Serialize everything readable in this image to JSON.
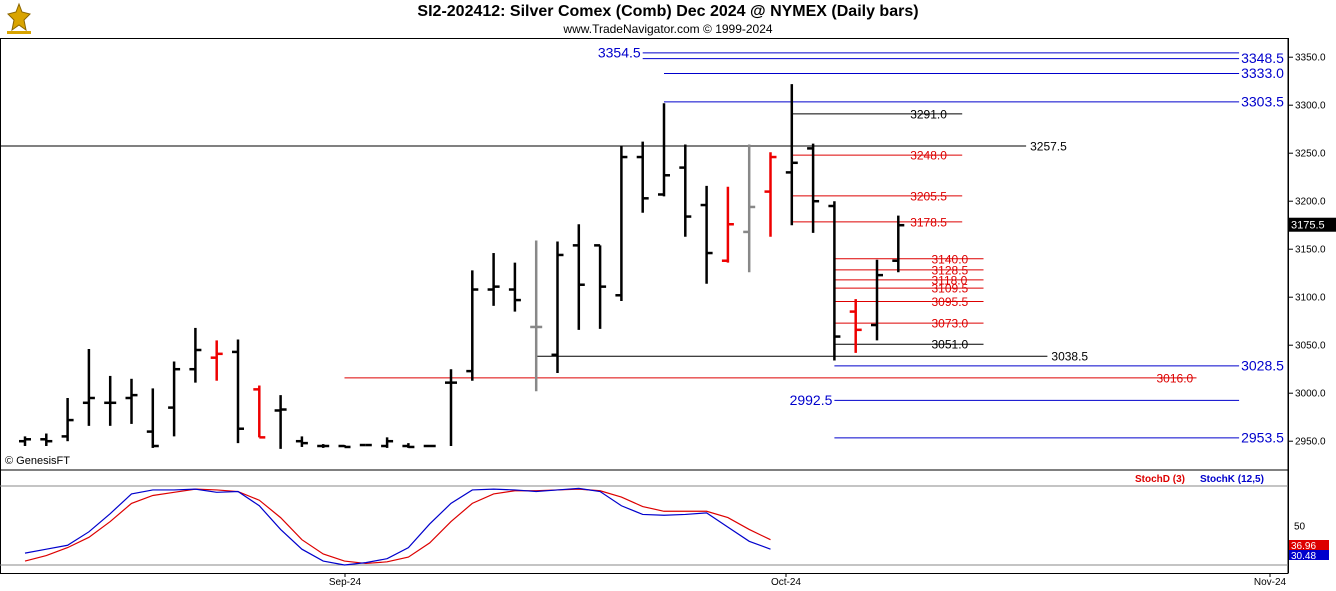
{
  "header": {
    "title": "SI2-202412:  Silver Comex (Comb) Dec 2024 @ NYMEX  (Daily bars)",
    "subtitle": "www.TradeNavigator.com © 1999-2024",
    "watermark": "© GenesisFT"
  },
  "colors": {
    "up": "#000000",
    "down": "#ee0000",
    "neutral": "#888888",
    "blue": "#0000cc",
    "red": "#dd0000",
    "accent_green": "#00cc00",
    "price_tag_bg": "#000000"
  },
  "chart_data": [
    {
      "type": "ohlc",
      "title": "SI2-202412:  Silver Comex (Comb) Dec 2024 @ NYMEX  (Daily bars)",
      "y_ticks": [
        2950.0,
        3000.0,
        3050.0,
        3100.0,
        3150.0,
        3200.0,
        3250.0,
        3300.0,
        3350.0
      ],
      "ylim": [
        2920,
        3370
      ],
      "x_labels": [
        "Sep-24",
        "Oct-24",
        "Nov-24"
      ],
      "last_price": "3175.5",
      "bars": [
        {
          "o": 2950,
          "h": 2955,
          "l": 2945,
          "c": 2952,
          "dir": "up"
        },
        {
          "o": 2952,
          "h": 2958,
          "l": 2945,
          "c": 2950,
          "dir": "up"
        },
        {
          "o": 2955,
          "h": 2995,
          "l": 2950,
          "c": 2972,
          "dir": "up"
        },
        {
          "o": 2990,
          "h": 3046,
          "l": 2966,
          "c": 2995,
          "dir": "up"
        },
        {
          "o": 2990,
          "h": 3018,
          "l": 2966,
          "c": 2990,
          "dir": "up"
        },
        {
          "o": 2995,
          "h": 3015,
          "l": 2968,
          "c": 2998,
          "dir": "up"
        },
        {
          "o": 2960,
          "h": 3005,
          "l": 2943,
          "c": 2945,
          "dir": "up"
        },
        {
          "o": 2985,
          "h": 3033,
          "l": 2955,
          "c": 3025,
          "dir": "up"
        },
        {
          "o": 3025,
          "h": 3068,
          "l": 3011,
          "c": 3045,
          "dir": "up"
        },
        {
          "o": 3037,
          "h": 3055,
          "l": 3013,
          "c": 3041,
          "dir": "down"
        },
        {
          "o": 3043,
          "h": 3056,
          "l": 2948,
          "c": 2963,
          "dir": "up"
        },
        {
          "o": 3004,
          "h": 3008,
          "l": 2954,
          "c": 2954,
          "dir": "down"
        },
        {
          "o": 2982,
          "h": 2998,
          "l": 2942,
          "c": 2983,
          "dir": "up"
        },
        {
          "o": 2950,
          "h": 2955,
          "l": 2944,
          "c": 2948,
          "dir": "up"
        },
        {
          "o": 2945,
          "h": 2947,
          "l": 2943,
          "c": 2945,
          "dir": "up"
        },
        {
          "o": 2945,
          "h": 2946,
          "l": 2944,
          "c": 2944,
          "dir": "up"
        },
        {
          "o": 2946,
          "h": 2946,
          "l": 2946,
          "c": 2946,
          "dir": "up"
        },
        {
          "o": 2945,
          "h": 2954,
          "l": 2943,
          "c": 2950,
          "dir": "up"
        },
        {
          "o": 2945,
          "h": 2948,
          "l": 2943,
          "c": 2944,
          "dir": "up"
        },
        {
          "o": 2945,
          "h": 2946,
          "l": 2944,
          "c": 2945,
          "dir": "up"
        },
        {
          "o": 3011,
          "h": 3025,
          "l": 2945,
          "c": 3011,
          "dir": "up"
        },
        {
          "o": 3023,
          "h": 3128,
          "l": 3013,
          "c": 3108,
          "dir": "up"
        },
        {
          "o": 3108,
          "h": 3146,
          "l": 3091,
          "c": 3111,
          "dir": "up"
        },
        {
          "o": 3108,
          "h": 3136,
          "l": 3085,
          "c": 3097,
          "dir": "up"
        },
        {
          "o": 3069,
          "h": 3159,
          "l": 3002,
          "c": 3069,
          "dir": "neutral"
        },
        {
          "o": 3040,
          "h": 3158,
          "l": 3021,
          "c": 3144,
          "dir": "up"
        },
        {
          "o": 3154,
          "h": 3176,
          "l": 3066,
          "c": 3113,
          "dir": "up"
        },
        {
          "o": 3154,
          "h": 3154,
          "l": 3067,
          "c": 3111,
          "dir": "up"
        },
        {
          "o": 3102,
          "h": 3257,
          "l": 3096,
          "c": 3246,
          "dir": "up"
        },
        {
          "o": 3246,
          "h": 3262,
          "l": 3188,
          "c": 3203,
          "dir": "up"
        },
        {
          "o": 3207,
          "h": 3302,
          "l": 3205,
          "c": 3227,
          "dir": "up"
        },
        {
          "o": 3235,
          "h": 3259,
          "l": 3163,
          "c": 3184,
          "dir": "up"
        },
        {
          "o": 3196,
          "h": 3216,
          "l": 3114,
          "c": 3146,
          "dir": "up"
        },
        {
          "o": 3138,
          "h": 3215,
          "l": 3136,
          "c": 3176,
          "dir": "down"
        },
        {
          "o": 3168,
          "h": 3259,
          "l": 3126,
          "c": 3194,
          "dir": "neutral"
        },
        {
          "o": 3210,
          "h": 3251,
          "l": 3163,
          "c": 3246,
          "dir": "down"
        },
        {
          "o": 3230,
          "h": 3322,
          "l": 3175,
          "c": 3240,
          "dir": "up"
        },
        {
          "o": 3255,
          "h": 3260,
          "l": 3167,
          "c": 3200,
          "dir": "up"
        },
        {
          "o": 3195,
          "h": 3200,
          "l": 3034,
          "c": 3059,
          "dir": "up"
        },
        {
          "o": 3085,
          "h": 3098,
          "l": 3042,
          "c": 3066,
          "dir": "down"
        },
        {
          "o": 3071,
          "h": 3139,
          "l": 3055,
          "c": 3123,
          "dir": "up"
        },
        {
          "o": 3138,
          "h": 3185,
          "l": 3126,
          "c": 3175,
          "dir": "up"
        }
      ],
      "levels": [
        {
          "value": 3354.5,
          "label": "3354.5",
          "color": "blue",
          "from": 29,
          "to": 57,
          "label_pos": "left"
        },
        {
          "value": 3348.5,
          "label": "3348.5",
          "color": "blue",
          "from": 29,
          "to": 57,
          "label_pos": "right"
        },
        {
          "value": 3333.0,
          "label": "3333.0",
          "color": "blue",
          "from": 30,
          "to": 57,
          "label_pos": "right"
        },
        {
          "value": 3303.5,
          "label": "3303.5",
          "color": "blue",
          "from": 30,
          "to": 57,
          "label_pos": "right"
        },
        {
          "value": 3291.0,
          "label": "3291.0",
          "color": "black",
          "from": 36,
          "to": 44,
          "label_pos": "right"
        },
        {
          "value": 3257.5,
          "label": "3257.5",
          "color": "black",
          "from": -1,
          "to": 47,
          "label_pos": "right"
        },
        {
          "value": 3248.0,
          "label": "3248.0",
          "color": "red",
          "from": 36,
          "to": 44,
          "label_pos": "right"
        },
        {
          "value": 3205.5,
          "label": "3205.5",
          "color": "red",
          "from": 36,
          "to": 44,
          "label_pos": "right"
        },
        {
          "value": 3178.5,
          "label": "3178.5",
          "color": "red",
          "from": 36,
          "to": 44,
          "label_pos": "right"
        },
        {
          "value": 3140.0,
          "label": "3140.0",
          "color": "red",
          "from": 38,
          "to": 45,
          "label_pos": "right"
        },
        {
          "value": 3128.5,
          "label": "3128.5",
          "color": "red",
          "from": 38,
          "to": 45,
          "label_pos": "right"
        },
        {
          "value": 3118.0,
          "label": "3118.0",
          "color": "red",
          "from": 38,
          "to": 45,
          "label_pos": "right"
        },
        {
          "value": 3109.5,
          "label": "3109.5",
          "color": "red",
          "from": 38,
          "to": 45,
          "label_pos": "right"
        },
        {
          "value": 3095.5,
          "label": "3095.5",
          "color": "red",
          "from": 38,
          "to": 45,
          "label_pos": "right"
        },
        {
          "value": 3073.0,
          "label": "3073.0",
          "color": "red",
          "from": 38,
          "to": 45,
          "label_pos": "right"
        },
        {
          "value": 3051.0,
          "label": "3051.0",
          "color": "black",
          "from": 38,
          "to": 45,
          "label_pos": "right"
        },
        {
          "value": 3038.5,
          "label": "3038.5",
          "color": "black",
          "from": 24,
          "to": 48,
          "label_pos": "right"
        },
        {
          "value": 3028.5,
          "label": "3028.5",
          "color": "blue",
          "from": 38,
          "to": 57,
          "label_pos": "right"
        },
        {
          "value": 3016.0,
          "label": "3016.0",
          "color": "red",
          "from": 15,
          "to": 55,
          "label_pos": "right"
        },
        {
          "value": 2992.5,
          "label": "2992.5",
          "color": "blue",
          "from": 38,
          "to": 57,
          "label_pos": "left"
        },
        {
          "value": 2953.5,
          "label": "2953.5",
          "color": "blue",
          "from": 38,
          "to": 57,
          "label_pos": "right"
        }
      ]
    },
    {
      "type": "line",
      "title": "",
      "series": [
        {
          "name": "StochD (3)",
          "color": "red",
          "values": [
            5,
            12,
            22,
            35,
            55,
            78,
            88,
            92,
            96,
            95,
            93,
            82,
            60,
            32,
            14,
            5,
            2,
            4,
            10,
            28,
            55,
            78,
            90,
            94,
            94,
            95,
            96,
            94,
            86,
            74,
            68,
            68,
            68,
            60,
            45,
            32
          ]
        },
        {
          "name": "StochK (12,5)",
          "color": "blue",
          "values": [
            15,
            20,
            25,
            42,
            65,
            90,
            95,
            95,
            96,
            92,
            93,
            75,
            45,
            20,
            5,
            0,
            3,
            8,
            22,
            52,
            78,
            95,
            96,
            95,
            93,
            95,
            97,
            93,
            75,
            64,
            63,
            64,
            66,
            48,
            30,
            20
          ]
        }
      ],
      "y_ticks": [
        "50"
      ],
      "last_values": [
        "36.96",
        "30.48"
      ]
    }
  ]
}
